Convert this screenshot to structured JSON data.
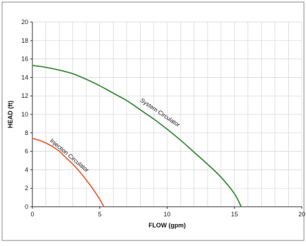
{
  "chart_data": {
    "type": "line",
    "title": "",
    "xlabel": "FLOW (gpm)",
    "ylabel": "HEAD (ft)",
    "xlim": [
      0,
      20
    ],
    "ylim": [
      0,
      20
    ],
    "x_ticks": [
      0,
      5,
      10,
      15,
      20
    ],
    "y_ticks": [
      0,
      2,
      4,
      6,
      8,
      10,
      12,
      14,
      16,
      18,
      20
    ],
    "x_tick_labels": [
      "0",
      "5",
      "10",
      "15",
      "20"
    ],
    "y_tick_labels": [
      "0",
      "2",
      "4",
      "6",
      "8",
      "10",
      "12",
      "14",
      "16",
      "18",
      "20"
    ],
    "grid": true,
    "series": [
      {
        "name": "System Circulator",
        "color": "#3d8a3d",
        "x": [
          0,
          1,
          2,
          3,
          4,
          5,
          6,
          7,
          8,
          9,
          10,
          11,
          12,
          13,
          14,
          15,
          15.5
        ],
        "y": [
          15.3,
          15.1,
          14.8,
          14.4,
          13.8,
          13.1,
          12.3,
          11.5,
          10.5,
          9.5,
          8.4,
          7.2,
          5.9,
          4.6,
          3.2,
          1.4,
          0
        ]
      },
      {
        "name": "Injection Circulator",
        "color": "#e8643c",
        "x": [
          0,
          0.5,
          1,
          1.5,
          2,
          2.5,
          3,
          3.5,
          4,
          4.5,
          5,
          5.3
        ],
        "y": [
          7.4,
          7.2,
          6.9,
          6.5,
          6.0,
          5.3,
          4.6,
          3.8,
          2.9,
          1.9,
          0.8,
          0
        ]
      }
    ]
  }
}
